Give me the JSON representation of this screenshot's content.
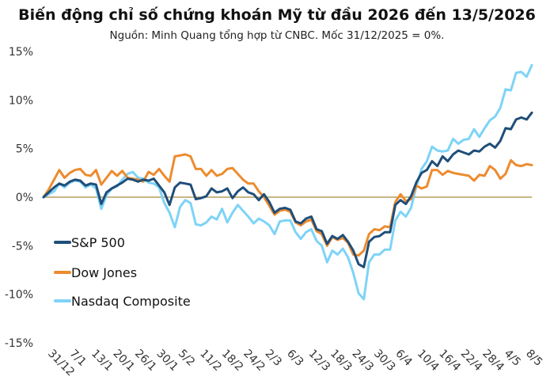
{
  "chart_data": {
    "type": "line",
    "title": "Biến động chỉ số chứng khoán Mỹ từ đầu 2026 đến 13/5/2026",
    "subtitle": "Nguồn: Minh Quang tổng hợp từ CNBC. Mốc 31/12/2025 = 0%.",
    "ylim": [
      -15,
      15
    ],
    "yticks": [
      15,
      10,
      5,
      0,
      -5,
      -10,
      -15
    ],
    "ytick_labels": [
      "15%",
      "10%",
      "5%",
      "0%",
      "-5%",
      "-10%",
      "-15%"
    ],
    "x_tick_labels": [
      "31/12",
      "7/1",
      "13/1",
      "20/1",
      "26/1",
      "30/1",
      "5/2",
      "11/2",
      "18/2",
      "24/2",
      "2/3",
      "6/3",
      "12/3",
      "18/3",
      "24/3",
      "30/3",
      "6/4",
      "10/4",
      "16/4",
      "22/4",
      "28/4",
      "4/5",
      "8/5"
    ],
    "legend_position": "left",
    "series": [
      {
        "name": "S&P 500",
        "color": "#1f4e79",
        "values": [
          0,
          0.5,
          1.0,
          1.4,
          1.2,
          1.6,
          1.8,
          1.7,
          1.2,
          1.4,
          1.3,
          -0.7,
          0.5,
          0.9,
          1.2,
          1.5,
          1.9,
          1.8,
          1.6,
          1.8,
          1.7,
          1.9,
          1.2,
          0.5,
          -0.8,
          1.0,
          1.5,
          1.4,
          1.3,
          -0.2,
          -0.1,
          0.1,
          0.9,
          0.5,
          0.6,
          0.9,
          -0.1,
          0.6,
          1.0,
          0.5,
          0.3,
          -0.3,
          0.3,
          -0.5,
          -1.6,
          -1.2,
          -1.1,
          -1.3,
          -2.5,
          -2.7,
          -2.2,
          -2.0,
          -3.3,
          -3.5,
          -4.8,
          -4.0,
          -4.3,
          -3.9,
          -4.6,
          -5.5,
          -6.9,
          -7.2,
          -4.6,
          -4.1,
          -4.0,
          -3.6,
          -3.6,
          -0.8,
          -0.3,
          -0.7,
          0.1,
          1.5,
          2.5,
          2.8,
          3.7,
          3.2,
          4.2,
          3.7,
          4.4,
          4.8,
          4.6,
          4.4,
          4.8,
          4.7,
          5.2,
          5.5,
          5.1,
          5.8,
          7.1,
          7.0,
          8.0,
          8.2,
          8.0,
          8.7
        ]
      },
      {
        "name": "Dow Jones",
        "color": "#ed8b2e",
        "values": [
          0,
          0.8,
          1.8,
          2.8,
          2.0,
          2.5,
          2.8,
          2.9,
          2.3,
          2.2,
          2.8,
          1.3,
          2.0,
          2.7,
          2.2,
          2.7,
          2.0,
          1.9,
          1.8,
          1.6,
          2.6,
          2.3,
          2.9,
          2.2,
          1.6,
          4.2,
          4.3,
          4.4,
          4.2,
          2.9,
          2.9,
          2.2,
          2.8,
          2.2,
          2.4,
          2.9,
          3.0,
          2.4,
          1.8,
          1.4,
          1.4,
          0.6,
          0.0,
          -0.9,
          -1.8,
          -1.4,
          -1.3,
          -1.5,
          -2.6,
          -2.9,
          -2.5,
          -2.3,
          -3.5,
          -3.8,
          -5.0,
          -4.1,
          -4.4,
          -4.2,
          -4.7,
          -5.9,
          -6.0,
          -5.5,
          -3.8,
          -3.3,
          -3.4,
          -3.0,
          -3.1,
          -0.5,
          0.3,
          -0.4,
          -0.2,
          1.2,
          0.9,
          1.1,
          2.8,
          2.8,
          2.3,
          2.7,
          2.5,
          2.4,
          2.3,
          2.2,
          1.7,
          2.3,
          2.2,
          3.2,
          2.8,
          1.9,
          2.4,
          3.8,
          3.3,
          3.2,
          3.4,
          3.3
        ]
      },
      {
        "name": "Nasdaq Composite",
        "color": "#7ed3f7",
        "values": [
          0,
          0.3,
          0.6,
          1.4,
          1.0,
          1.5,
          1.7,
          1.6,
          1.0,
          1.3,
          0.9,
          -1.2,
          0.2,
          0.9,
          1.1,
          1.8,
          2.4,
          2.6,
          2.0,
          1.9,
          1.5,
          1.4,
          1.0,
          -0.6,
          -1.6,
          -3.1,
          -1.0,
          -0.3,
          -0.6,
          -2.8,
          -2.9,
          -2.6,
          -2.0,
          -2.3,
          -1.2,
          -2.6,
          -1.6,
          -0.8,
          -1.4,
          -2.0,
          -2.7,
          -2.2,
          -2.5,
          -2.9,
          -3.8,
          -2.5,
          -2.4,
          -2.4,
          -3.6,
          -4.3,
          -3.6,
          -3.3,
          -4.5,
          -5.0,
          -6.7,
          -5.5,
          -5.9,
          -5.3,
          -6.2,
          -7.8,
          -9.9,
          -10.5,
          -6.7,
          -5.9,
          -5.9,
          -5.4,
          -5.4,
          -2.4,
          -1.5,
          -2.0,
          -1.1,
          1.1,
          2.9,
          3.7,
          5.2,
          4.8,
          4.7,
          4.8,
          6.0,
          5.5,
          5.9,
          6.0,
          7.0,
          6.2,
          7.1,
          7.9,
          8.3,
          9.2,
          11.1,
          11.0,
          12.8,
          12.9,
          12.4,
          13.6
        ]
      }
    ]
  }
}
